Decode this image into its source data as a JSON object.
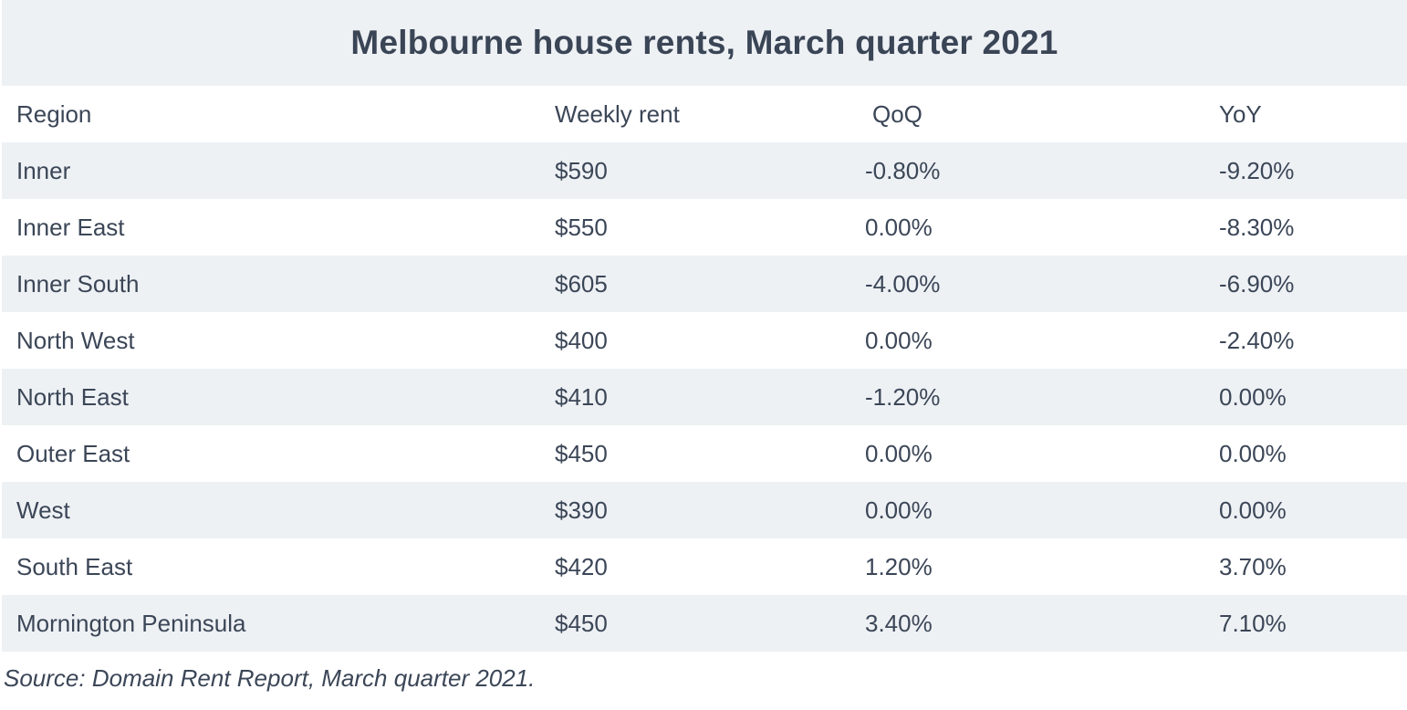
{
  "title": "Melbourne house rents, March quarter 2021",
  "columns": [
    "Region",
    "Weekly rent",
    "QoQ",
    "YoY"
  ],
  "rows": [
    [
      "Inner",
      "$590",
      "-0.80%",
      "-9.20%"
    ],
    [
      "Inner East",
      "$550",
      "0.00%",
      "-8.30%"
    ],
    [
      "Inner South",
      "$605",
      "-4.00%",
      "-6.90%"
    ],
    [
      "North West",
      "$400",
      "0.00%",
      "-2.40%"
    ],
    [
      "North East",
      "$410",
      "-1.20%",
      "0.00%"
    ],
    [
      "Outer East",
      "$450",
      "0.00%",
      "0.00%"
    ],
    [
      "West",
      "$390",
      "0.00%",
      "0.00%"
    ],
    [
      "South East",
      "$420",
      "1.20%",
      "3.70%"
    ],
    [
      "Mornington Peninsula",
      "$450",
      "3.40%",
      "7.10%"
    ]
  ],
  "source": "Source: Domain Rent Report, March quarter 2021.",
  "colors": {
    "band": "#eef1f4",
    "text": "#3b4657"
  }
}
